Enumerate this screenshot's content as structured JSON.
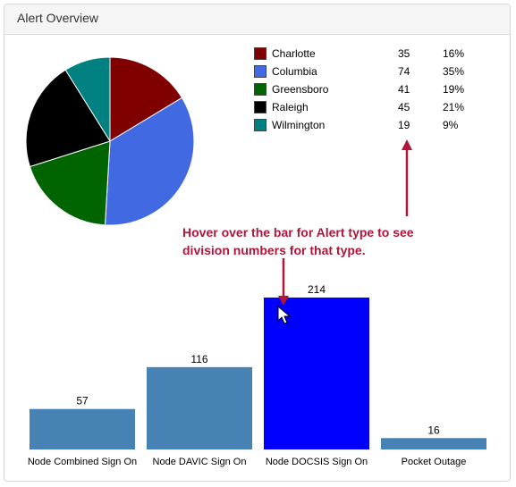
{
  "panel": {
    "title": "Alert Overview"
  },
  "legend": [
    {
      "name": "Charlotte",
      "count": "35",
      "percent": "16%",
      "color": "#800000"
    },
    {
      "name": "Columbia",
      "count": "74",
      "percent": "35%",
      "color": "#4169E1"
    },
    {
      "name": "Greensboro",
      "count": "41",
      "percent": "19%",
      "color": "#006400"
    },
    {
      "name": "Raleigh",
      "count": "45",
      "percent": "21%",
      "color": "#000000"
    },
    {
      "name": "Wilmington",
      "count": "19",
      "percent": "9%",
      "color": "#008080"
    }
  ],
  "annotation": {
    "text": "Hover over the bar for Alert type to see division numbers for that type.",
    "color": "#b0153a"
  },
  "chart_data": [
    {
      "type": "pie",
      "categories": [
        "Charlotte",
        "Columbia",
        "Greensboro",
        "Raleigh",
        "Wilmington"
      ],
      "values": [
        35,
        74,
        41,
        45,
        19
      ],
      "colors": [
        "#800000",
        "#4169E1",
        "#006400",
        "#000000",
        "#008080"
      ]
    },
    {
      "type": "bar",
      "categories": [
        "Node Combined Sign On",
        "Node DAVIC Sign On",
        "Node DOCSIS Sign On",
        "Pocket Outage"
      ],
      "values": [
        57,
        116,
        214,
        16
      ],
      "colors": [
        "#4682B4",
        "#4682B4",
        "#0000FF",
        "#4682B4"
      ],
      "highlighted": "Node DOCSIS Sign On",
      "data_labels": [
        "57",
        "116",
        "214",
        "16"
      ]
    }
  ]
}
